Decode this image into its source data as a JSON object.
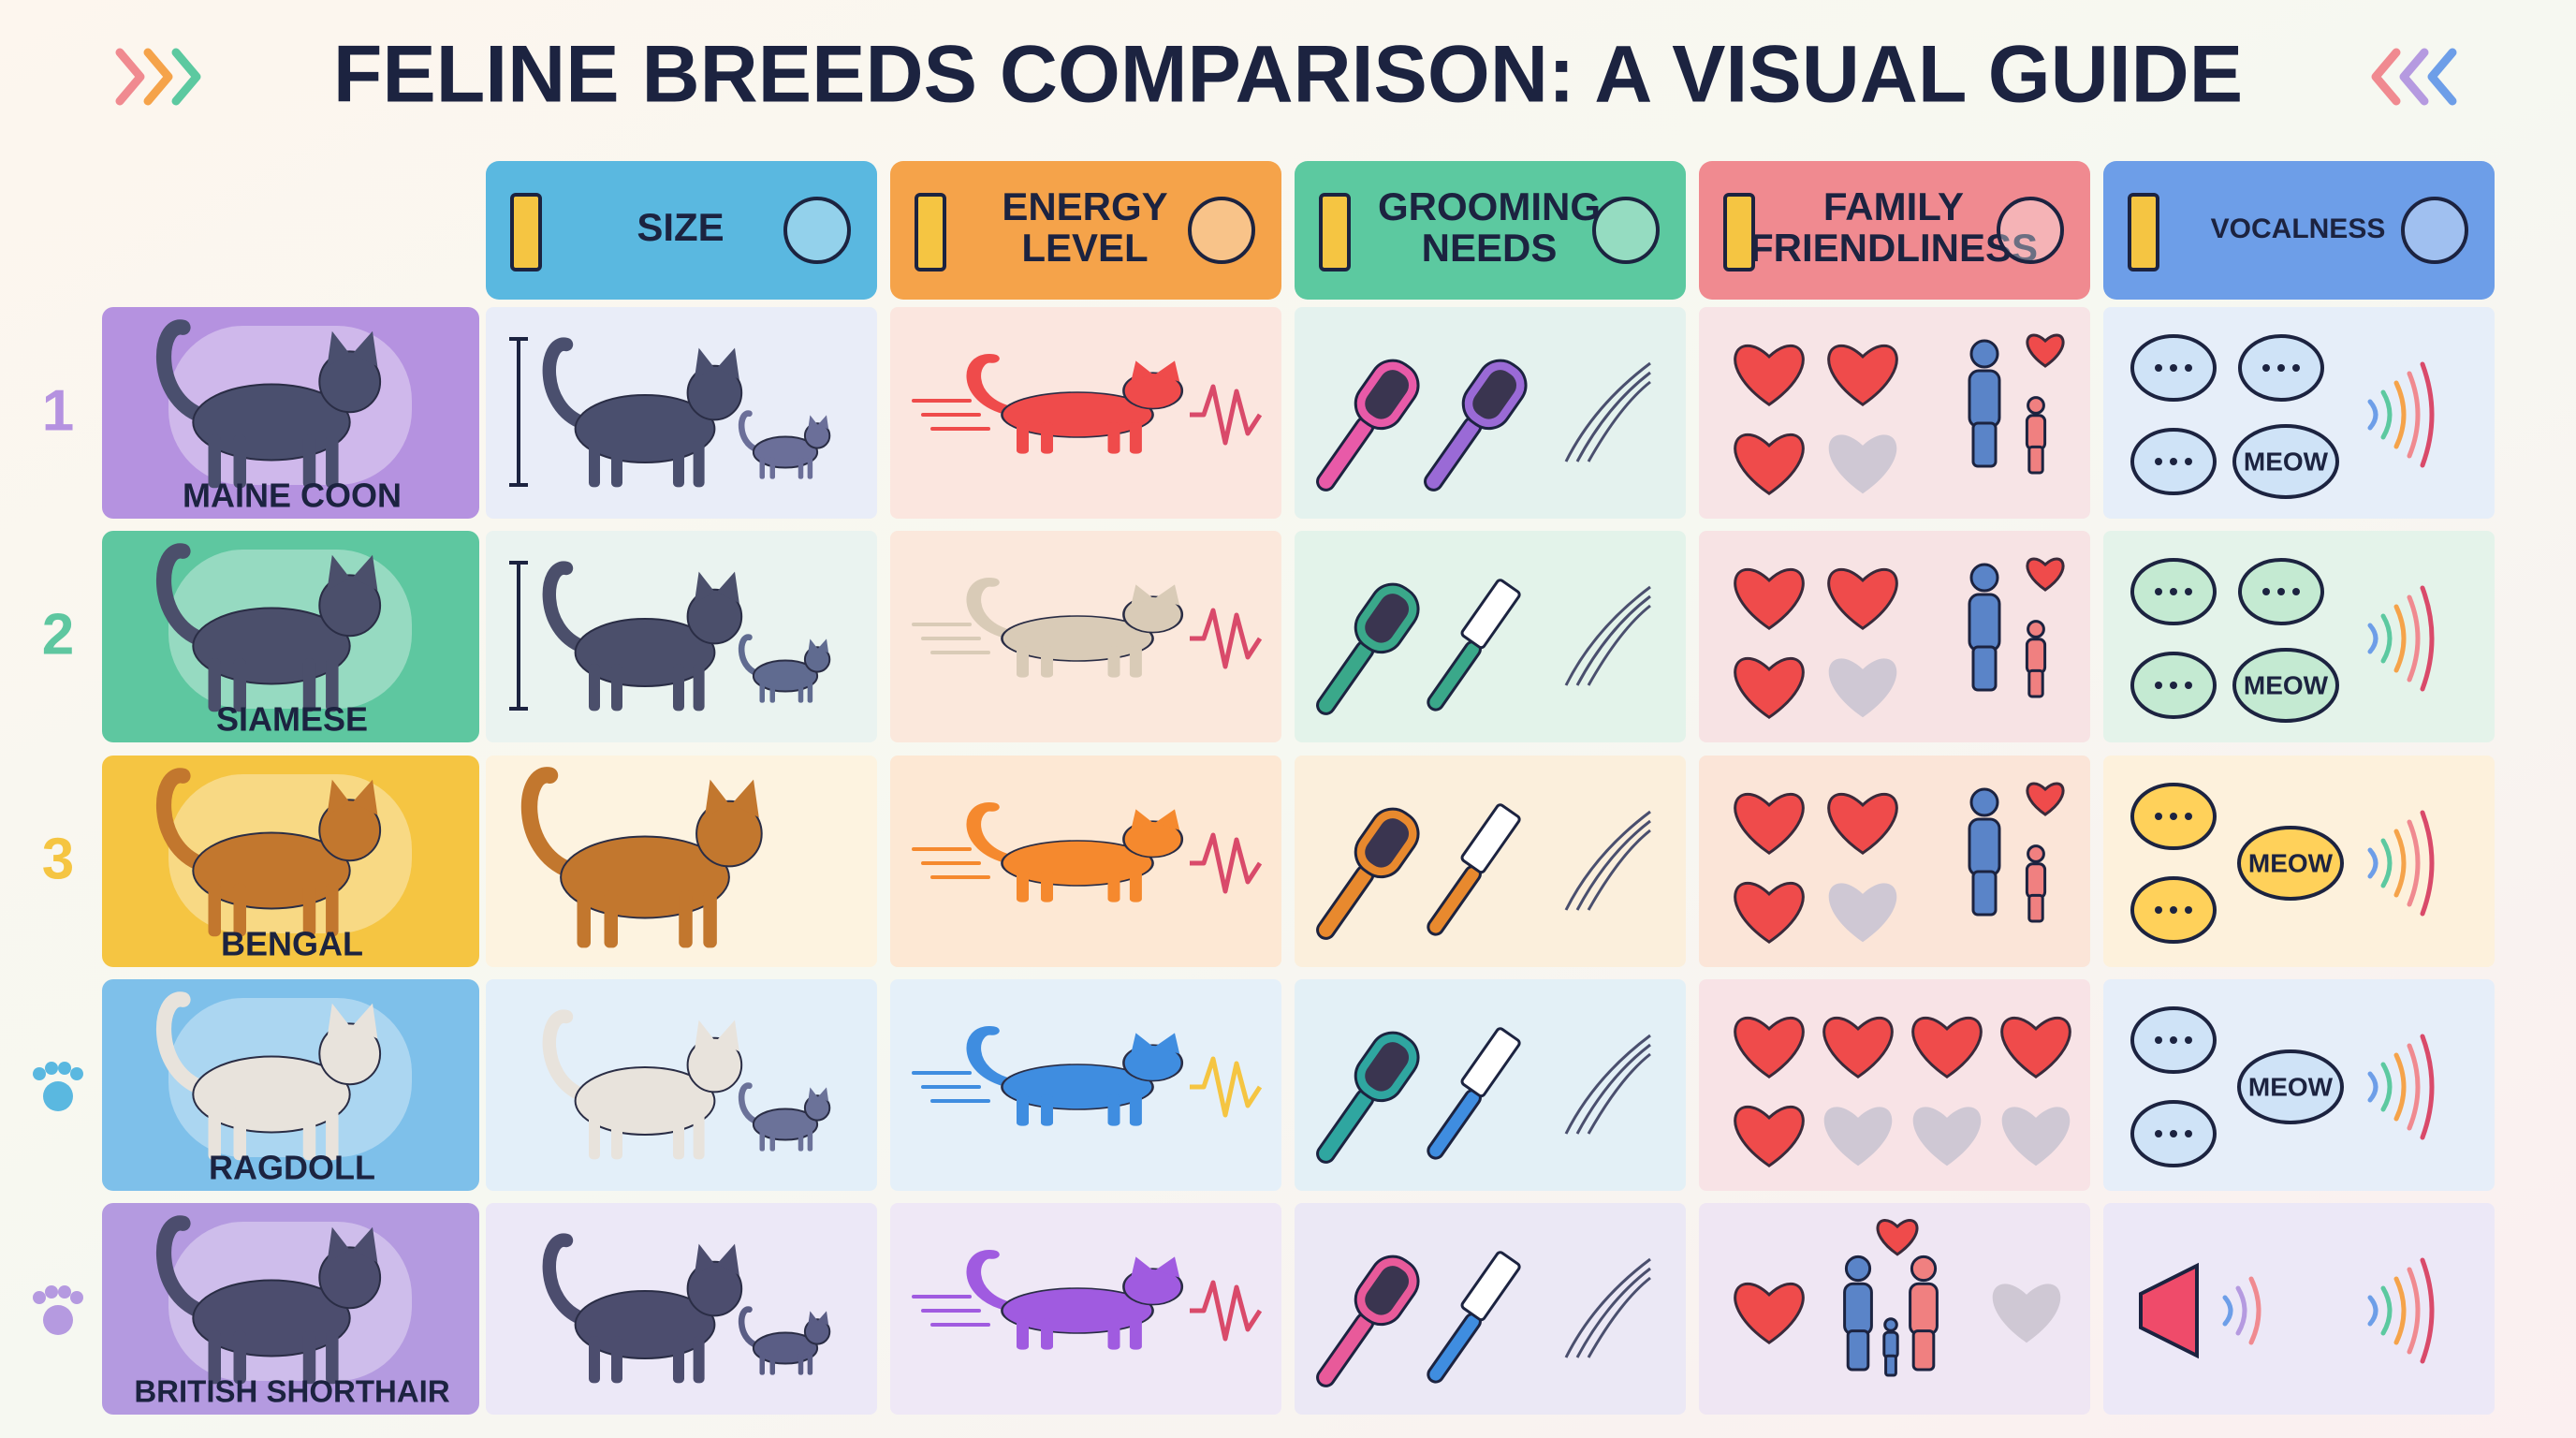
{
  "header": {
    "title": "FELINE BREEDS COMPARISON: A VISUAL GUIDE"
  },
  "columns": [
    [
      "SIZE"
    ],
    [
      "ENERGY",
      "LEVEL"
    ],
    [
      "GROOMING",
      "NEEDS"
    ],
    [
      "FAMILY",
      "FRIENDLINESS"
    ],
    [
      "VOCALNESS"
    ]
  ],
  "rows": [
    {
      "rank": 1,
      "breed": "MAINE COON",
      "meow": "MEOW"
    },
    {
      "rank": 2,
      "breed": "SIAMESE",
      "meow": "MEOW"
    },
    {
      "rank": 3,
      "breed": "BENGAL",
      "meow": "MEOW"
    },
    {
      "breed": "RAGDOLL",
      "meow": "MEOW"
    },
    {
      "breed": "BRITISH SHORTHAIR"
    }
  ]
}
